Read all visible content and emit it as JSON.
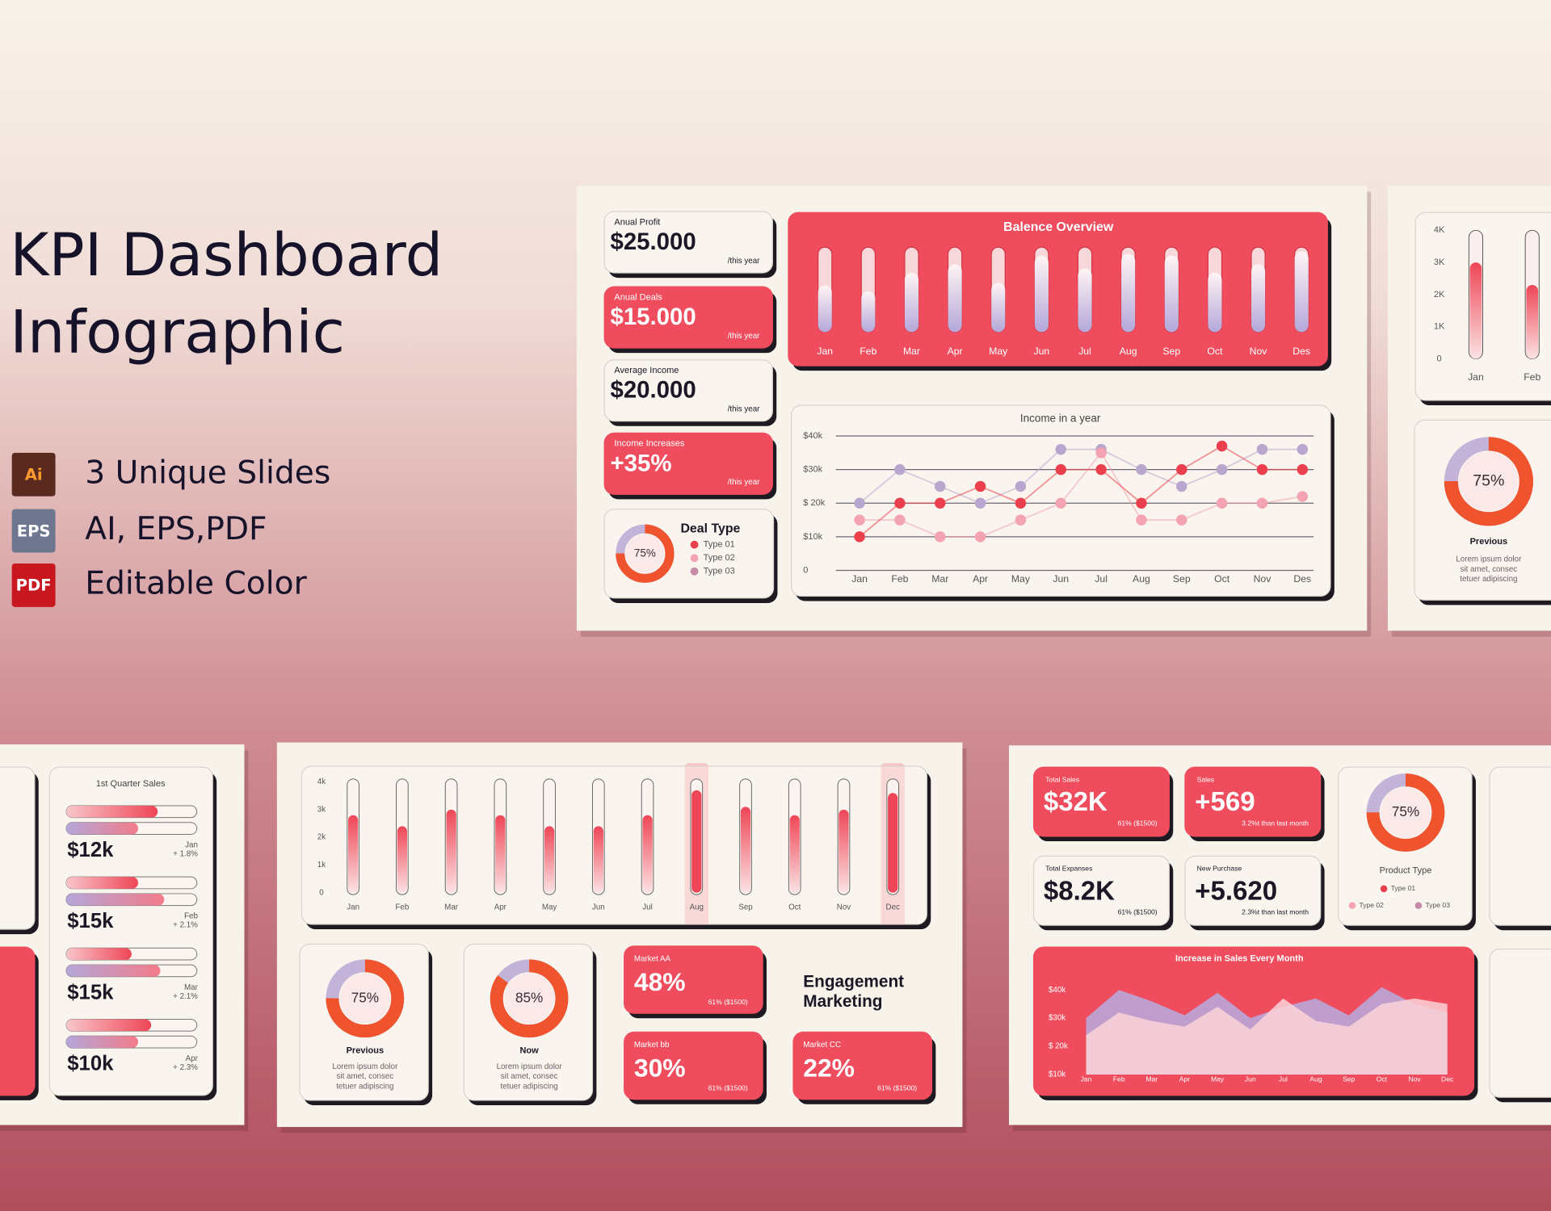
{
  "hero": {
    "title": [
      "KPI Dashboard",
      "Infographic"
    ],
    "features": [
      {
        "icon": "Ai",
        "text": "3 Unique Slides"
      },
      {
        "icon": "EPS",
        "text": "AI, EPS,PDF"
      },
      {
        "icon": "PDF",
        "text": "Editable Color"
      }
    ]
  },
  "slide1": {
    "kpis": [
      {
        "label": "Anual Profit",
        "value": "$25.000",
        "note": "/this year",
        "highlight": false
      },
      {
        "label": "Anual Deals",
        "value": "$15.000",
        "note": "/this year",
        "highlight": true
      },
      {
        "label": "Average Income",
        "value": "$20.000",
        "note": "/this year",
        "highlight": false
      },
      {
        "label": "Income Increases",
        "value": "+35%",
        "note": "/this year",
        "highlight": true
      }
    ],
    "balance": {
      "type": "bar",
      "title": "Balence Overview",
      "categories": [
        "Jan",
        "Feb",
        "Mar",
        "Apr",
        "May",
        "Jun",
        "Jul",
        "Aug",
        "Sep",
        "Oct",
        "Nov",
        "Des"
      ],
      "values": [
        55,
        48,
        70,
        80,
        58,
        90,
        75,
        92,
        90,
        70,
        80,
        95
      ],
      "ylim": [
        0,
        100
      ]
    },
    "income": {
      "type": "line",
      "title": "Income in a year",
      "categories": [
        "Jan",
        "Feb",
        "Mar",
        "Apr",
        "May",
        "Jun",
        "Jul",
        "Aug",
        "Sep",
        "Oct",
        "Nov",
        "Des"
      ],
      "ylim": [
        0,
        40
      ],
      "yticks": [
        {
          "value": 40,
          "label": "$40k"
        },
        {
          "value": 30,
          "label": "$30k"
        },
        {
          "value": 20,
          "label": "$ 20k"
        },
        {
          "value": 10,
          "label": "$10k"
        },
        0
      ],
      "series": [
        {
          "color": "#b9a6cf",
          "values": [
            20,
            30,
            25,
            20,
            25,
            36,
            36,
            30,
            25,
            30,
            36,
            36
          ]
        },
        {
          "color": "#f3a3b1",
          "values": [
            15,
            15,
            10,
            10,
            15,
            20,
            35,
            15,
            15,
            20,
            20,
            22
          ]
        },
        {
          "color": "#ec3f4e",
          "values": [
            10,
            20,
            20,
            25,
            20,
            30,
            30,
            20,
            30,
            37,
            30,
            30
          ]
        }
      ]
    },
    "deal": {
      "title": "Deal Type",
      "value": 75,
      "value_label": "75%",
      "legend": [
        {
          "name": "Type 01",
          "color": "#ec3f4e"
        },
        {
          "name": "Type 02",
          "color": "#f3a3b1"
        },
        {
          "name": "Type 03",
          "color": "#c78aa9"
        }
      ]
    }
  },
  "slide2": {
    "bars": {
      "type": "bar",
      "categories": [
        "Jan",
        "Feb"
      ],
      "values": [
        3000,
        2300
      ],
      "ylim": [
        0,
        4000
      ],
      "yticks": [
        {
          "value": 4000,
          "label": "4K"
        },
        {
          "value": 3000,
          "label": "3K"
        },
        {
          "value": 2000,
          "label": "2K"
        },
        {
          "value": 1000,
          "label": "1K"
        },
        0
      ]
    },
    "donut": {
      "value": 75,
      "value_label": "75%",
      "title": "Previous",
      "text": [
        "Lorem ipsum dolor",
        "sit amet, consec",
        "tetuer adipiscing"
      ]
    }
  },
  "slide3": {
    "title": "1st Quarter Sales",
    "items": [
      {
        "value": "$12k",
        "month": "Jan",
        "change": "+ 1.8%",
        "bars": [
          70,
          55
        ]
      },
      {
        "value": "$15k",
        "month": "Feb",
        "change": "+ 2.1%",
        "bars": [
          55,
          75
        ]
      },
      {
        "value": "$15k",
        "month": "Mar",
        "change": "+ 2.1%",
        "bars": [
          50,
          72
        ]
      },
      {
        "value": "$10k",
        "month": "Apr",
        "change": "+ 2.3%",
        "bars": [
          65,
          55
        ]
      }
    ]
  },
  "slide4": {
    "bars": {
      "type": "bar",
      "categories": [
        "Jan",
        "Feb",
        "Mar",
        "Apr",
        "May",
        "Jun",
        "Jul",
        "Aug",
        "Sep",
        "Oct",
        "Nov",
        "Dec"
      ],
      "values": [
        2800,
        2400,
        3000,
        2800,
        2400,
        2400,
        2800,
        3700,
        3100,
        2800,
        3000,
        3600
      ],
      "highlight": [
        7,
        11
      ],
      "ylim": [
        0,
        4000
      ],
      "yticks": [
        {
          "value": 4000,
          "label": "4k"
        },
        {
          "value": 3000,
          "label": "3k"
        },
        {
          "value": 2000,
          "label": "2k"
        },
        {
          "value": 1000,
          "label": "1k"
        },
        0
      ]
    },
    "donuts": [
      {
        "value": 75,
        "value_label": "75%",
        "title": "Previous",
        "text": [
          "Lorem ipsum dolor",
          "sit amet, consec",
          "tetuer adipiscing"
        ]
      },
      {
        "value": 85,
        "value_label": "85%",
        "title": "Now",
        "text": [
          "Lorem ipsum dolor",
          "sit amet, consec",
          "tetuer adipiscing"
        ]
      }
    ],
    "markets": [
      {
        "label": "Market AA",
        "value": "48%",
        "note": "61% ($1500)"
      },
      {
        "label": "Market bb",
        "value": "30%",
        "note": "61% ($1500)"
      },
      {
        "label": "Market CC",
        "value": "22%",
        "note": "61% ($1500)"
      }
    ],
    "heading": [
      "Engagement",
      "Marketing"
    ]
  },
  "slide5": {
    "cards": [
      {
        "label": "Total Sales",
        "value": "$32K",
        "note": "61% ($1500)",
        "highlight": true
      },
      {
        "label": "Sales",
        "value": "+569",
        "note": "3.2%t than last month",
        "highlight": true
      },
      {
        "label": "Total Expanses",
        "value": "$8.2K",
        "note": "61% ($1500)",
        "highlight": false
      },
      {
        "label": "New Purchase",
        "value": "+5.620",
        "note": "2.3%t than last month",
        "highlight": false
      }
    ],
    "donut": {
      "value": 75,
      "value_label": "75%",
      "title": "Product Type",
      "legend": [
        {
          "name": "Type 01",
          "color": "#ec3f4e"
        },
        {
          "name": "Type 02",
          "color": "#f3a3b1"
        },
        {
          "name": "Type 03",
          "color": "#c78aa9"
        }
      ]
    },
    "area": {
      "type": "area",
      "title": "Increase in Sales Every Month",
      "categories": [
        "Jan",
        "Feb",
        "Mar",
        "Apr",
        "May",
        "Jun",
        "Jul",
        "Aug",
        "Sep",
        "Oct",
        "Nov",
        "Dec"
      ],
      "ylim": [
        10,
        44
      ],
      "yticks": [
        {
          "value": 40,
          "label": "$40k"
        },
        {
          "value": 30,
          "label": "$30k"
        },
        {
          "value": 20,
          "label": "$ 20k"
        },
        {
          "value": 10,
          "label": "$10k"
        }
      ],
      "series": [
        {
          "color": "#b9a6d8",
          "values": [
            30,
            40,
            36,
            31,
            39,
            30,
            34,
            37,
            31,
            41,
            35,
            32
          ]
        },
        {
          "color": "#fbd4d7",
          "values": [
            24,
            32,
            29,
            27,
            34,
            26,
            37,
            29,
            27,
            35,
            37,
            35
          ]
        }
      ]
    }
  }
}
